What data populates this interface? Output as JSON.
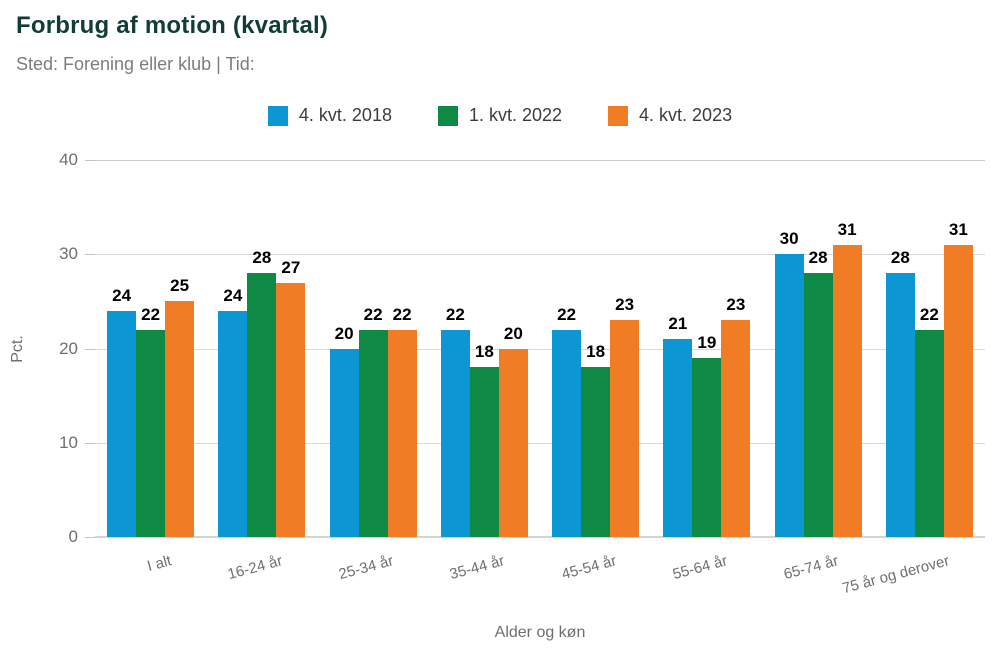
{
  "header": {
    "title": "Forbrug af motion (kvartal)",
    "subtitle": "Sted: Forening eller klub | Tid:"
  },
  "chart_data": {
    "type": "bar",
    "title": "Forbrug af motion (kvartal)",
    "subtitle": "Sted: Forening eller klub | Tid:",
    "categories": [
      "I alt",
      "16-24 år",
      "25-34 år",
      "35-44 år",
      "45-54 år",
      "55-64 år",
      "65-74 år",
      "75 år og derover"
    ],
    "series": [
      {
        "name": "4. kvt. 2018",
        "color": "#0d96d4",
        "values": [
          24,
          24,
          20,
          22,
          22,
          21,
          30,
          28
        ]
      },
      {
        "name": "1. kvt. 2022",
        "color": "#0e8a45",
        "values": [
          22,
          28,
          22,
          18,
          18,
          19,
          28,
          22
        ]
      },
      {
        "name": "4. kvt. 2023",
        "color": "#f07d26",
        "values": [
          25,
          27,
          22,
          20,
          23,
          23,
          31,
          31
        ]
      }
    ],
    "xlabel": "Alder og køn",
    "ylabel": "Pct.",
    "yticks": [
      0,
      10,
      20,
      30,
      40
    ],
    "ylim": [
      0,
      40
    ],
    "grid": true,
    "legend_position": "top",
    "text_colors": {
      "title": "#123d36",
      "subtitle": "#7d7d7d",
      "axis": "#6f6f6f",
      "value_labels": "#000000"
    }
  }
}
